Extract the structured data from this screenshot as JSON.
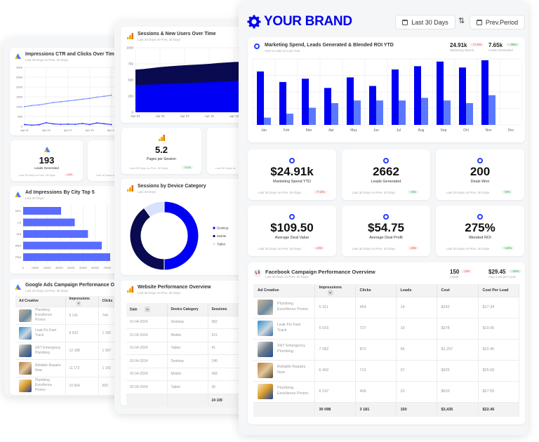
{
  "brand": {
    "name": "YOUR BRAND",
    "accent": "#0000ff"
  },
  "header": {
    "date_range": "Last 30 Days",
    "compare": "Prev.Period"
  },
  "main_chart": {
    "title": "Marketing Spend, Leads Generated & Blended ROI YTD",
    "subtitle": "Year to Date vs Last Year",
    "kpis": [
      {
        "value": "24.91k",
        "delta": "↑7.2%",
        "label": "Marketing Spend",
        "trend": "bad"
      },
      {
        "value": "7.65k",
        "delta": "↑ 39%",
        "label": "Leads Generated",
        "trend": "good"
      }
    ]
  },
  "kpi_cards": [
    {
      "value": "$24.91k",
      "label": "Marketing Spend YTD",
      "caption": "Last 30 Days vs Prev. 30 Days",
      "delta": "↑7.2%",
      "trend": "bad"
    },
    {
      "value": "2662",
      "label": "Leads Generated",
      "caption": "Last 30 Days vs Prev. 30 Days",
      "delta": "↑4%",
      "trend": "good"
    },
    {
      "value": "200",
      "label": "Deals Won",
      "caption": "Last 30 Days vs Prev. 30 Days",
      "delta": "↑6%",
      "trend": "good"
    },
    {
      "value": "$109.50",
      "label": "Average Deal Value",
      "caption": "Last 30 Days vs Prev. 30 Days",
      "delta": "↓4%",
      "trend": "bad"
    },
    {
      "value": "$54.75",
      "label": "Average Deal Profit",
      "caption": "Last 30 Days vs Prev. 30 Days",
      "delta": "↓6%",
      "trend": "bad"
    },
    {
      "value": "275%",
      "label": "Blended ROI",
      "caption": "Last 30 Days vs Prev. 30 Days",
      "delta": "↑12%",
      "trend": "good"
    }
  ],
  "fb": {
    "title": "Facebook Campaign Performance Overview",
    "subtitle": "Last 30 Days vs Prev. 30 Days",
    "kpis": [
      {
        "value": "150",
        "delta": "↓2%",
        "label": "Leads",
        "trend": "bad"
      },
      {
        "value": "$29.45",
        "delta": "↓16%",
        "label": "Avg. Cost per Lead",
        "trend": "good"
      }
    ],
    "columns": [
      "Ad Creative",
      "Impressions",
      "Clicks",
      "Leads",
      "Cost",
      "Cost Per Lead"
    ],
    "rows": [
      [
        "Plumbing Excellence Promo",
        "5 311",
        "464",
        "14",
        "$242",
        "$17.34"
      ],
      [
        "Leak Fix Fast Track",
        "5 016",
        "727",
        "19",
        "$378",
        "$19.90"
      ],
      [
        "24/7 Emergency Plumbing",
        "7 082",
        "872",
        "56",
        "$1,257",
        "$22.45"
      ],
      [
        "Reliable Repairs Now",
        "6 492",
        "712",
        "37",
        "$925",
        "$25.00"
      ],
      [
        "Plumbing Excellence Promo",
        "6 197",
        "406",
        "23",
        "$633",
        "$27.55"
      ]
    ],
    "totals": [
      "",
      "30 098",
      "3 181",
      "150",
      "$3,435",
      "$22.45"
    ]
  },
  "left": {
    "line_card": {
      "title": "Impressions CTR and Clicks Over Time",
      "subtitle": "Last 30 Days vs Prev. 30 Days"
    },
    "kpis": [
      {
        "value": "193",
        "label": "Leads Generated",
        "caption": "Last 30 Days vs Prev. 30 Days",
        "delta": "↓4%",
        "trend": "bad"
      },
      {
        "value": "$",
        "label": "",
        "caption": "Last 30 Days vs",
        "delta": "",
        "trend": "good"
      }
    ],
    "bar_card": {
      "title": "Ad Impressions By City Top 5",
      "subtitle": "Last 30 Days"
    },
    "table": {
      "title": "Google Ads Campaign Performance Overview",
      "subtitle": "Last 30 Days vs Prev. 30 Days",
      "columns": [
        "Ad Creative",
        "Impressions",
        "Clicks"
      ],
      "rows": [
        [
          "Plumbing Excellence Promo",
          "9 141",
          "744"
        ],
        [
          "Leak Fix Fast Track",
          "8 633",
          "1 165"
        ],
        [
          "24/7 Emergency Plumbing",
          "12 188",
          "1 397"
        ],
        [
          "Reliable Repairs Now",
          "11 172",
          "1 142"
        ],
        [
          "Plumbing Excellence Promo",
          "10 664",
          "650"
        ]
      ]
    }
  },
  "mid": {
    "area_card": {
      "title": "Sessions & New Users Over Time",
      "subtitle": "Last 30 Days vs Prev. 30 Days"
    },
    "kpis": [
      {
        "value": "5.2",
        "label": "Pages per Session",
        "caption": "Last 30 Days vs Prev. 30 Days",
        "delta": "↑21%",
        "trend": "good"
      },
      {
        "value": "1.",
        "label": "Goal C",
        "caption": "Last 30 Days vs",
        "delta": "",
        "trend": "good"
      }
    ],
    "donut_card": {
      "title": "Sessions by Device Category",
      "subtitle": "Last 30 Days"
    },
    "table": {
      "title": "Website Performance Overview",
      "subtitle": "Last 30 Days vs Prev. 30 Days",
      "columns": [
        "Date",
        "Device Category",
        "Sessions"
      ],
      "rows": [
        [
          "01-04-2024",
          "Desktop",
          "982"
        ],
        [
          "01-04-2024",
          "Mobile",
          "521"
        ],
        [
          "01-04-2024",
          "Tablet",
          "41"
        ],
        [
          "02-04-2024",
          "Desktop",
          "246"
        ],
        [
          "02-04-2024",
          "Mobile",
          "458"
        ],
        [
          "02-04-2024",
          "Tablet",
          "36"
        ]
      ],
      "totals": [
        "",
        "",
        "24 109"
      ]
    }
  },
  "chart_data": [
    {
      "id": "ytd",
      "type": "bar",
      "categories": [
        "Jan",
        "Feb",
        "Mar",
        "Apr",
        "May",
        "Jun",
        "Jul",
        "Aug",
        "Sep",
        "Oct",
        "Nov",
        "Dec"
      ],
      "series": [
        {
          "values": [
            81,
            65,
            70,
            56,
            72,
            59,
            84,
            89,
            96,
            87,
            98,
            0
          ],
          "color": "#0000f5"
        },
        {
          "values": [
            11,
            17,
            26,
            33,
            37,
            37,
            37,
            41,
            37,
            33,
            45,
            0
          ],
          "color": "#5a78ff"
        }
      ],
      "ylim": [
        0,
        100
      ],
      "grid": true
    },
    {
      "id": "impressions",
      "type": "line",
      "categories": [
        "Apr 01",
        "Apr 02",
        "Apr 03",
        "Apr 04",
        "Apr 05",
        "Apr 06",
        "Apr 07",
        "Apr 08",
        "Apr 09",
        "Apr 10",
        "Apr 11",
        "Apr 12",
        "Apr 13"
      ],
      "tick_labels": [
        "Apr 01",
        "Apr 04",
        "Apr 07",
        "Apr 10",
        "Apr 13"
      ],
      "series": [
        {
          "values": [
            1000,
            1060,
            1090,
            1150,
            1210,
            1250,
            1290,
            1330,
            1380,
            1420,
            1480,
            1530,
            1580
          ],
          "color": "#7f9cff"
        },
        {
          "values": [
            90,
            60,
            80,
            180,
            120,
            100,
            110,
            100,
            140,
            90,
            170,
            130,
            90
          ],
          "color": "#2b3cff"
        }
      ],
      "yticks": [
        0,
        500,
        1000,
        1500,
        2000,
        2500,
        3000
      ],
      "ylim": [
        0,
        3000
      ],
      "grid": true
    },
    {
      "id": "sessions",
      "type": "area",
      "categories": [
        "Apr 01",
        "Apr 02",
        "Apr 03",
        "Apr 04",
        "Apr 05",
        "Apr 06",
        "Apr 07",
        "Apr 08",
        "Apr 09",
        "Apr 10",
        "Apr 11",
        "Apr 12",
        "Apr 13",
        "Apr 14"
      ],
      "tick_labels": [
        "Apr 01",
        "Apr 04",
        "Apr 07",
        "Apr 10",
        "Apr 13"
      ],
      "series": [
        {
          "values": [
            660,
            670,
            685,
            700,
            710,
            720,
            728,
            735,
            742,
            750,
            762,
            770,
            778,
            782
          ],
          "color": "#0a0a50"
        },
        {
          "values": [
            420,
            425,
            430,
            435,
            440,
            445,
            450,
            455,
            460,
            465,
            470,
            478,
            485,
            490
          ],
          "color": "#0000f5"
        }
      ],
      "yticks": [
        0,
        250,
        500,
        750,
        1000
      ],
      "ylim": [
        0,
        1000
      ],
      "grid": true
    },
    {
      "id": "cities",
      "type": "bar",
      "orientation": "horizontal",
      "categories": [
        "NYC",
        "LA",
        "CHI",
        "HOU",
        "PHX"
      ],
      "values": [
        31600,
        43000,
        54000,
        65500,
        72500
      ],
      "xticks": [
        0,
        10000,
        20000,
        30000,
        40000,
        50000,
        60000,
        70000
      ],
      "color": "#5a6cff",
      "grid": true
    },
    {
      "id": "devices",
      "type": "pie",
      "donut": true,
      "categories": [
        "Desktop",
        "Mobile",
        "Tablet"
      ],
      "values": [
        50,
        40,
        10
      ],
      "colors": [
        "#0000f5",
        "#0a0a50",
        "#d8e2ff"
      ],
      "legend": "right"
    }
  ]
}
